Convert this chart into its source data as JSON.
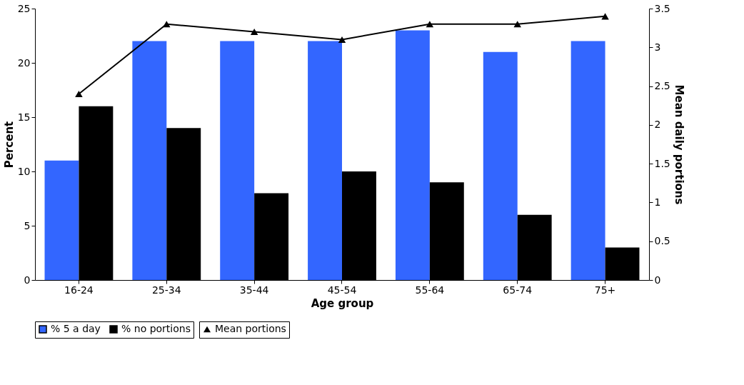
{
  "chart_data": {
    "type": "bar",
    "xlabel": "Age group",
    "ylabel": "Percent",
    "y2label": "Mean daily portions",
    "categories": [
      "16-24",
      "25-34",
      "35-44",
      "45-54",
      "55-64",
      "65-74",
      "75+"
    ],
    "series": [
      {
        "name": "% 5 a day",
        "color": "#3366ff",
        "values": [
          11,
          22,
          22,
          22,
          23,
          21,
          22
        ]
      },
      {
        "name": "% no portions",
        "color": "#000000",
        "values": [
          16,
          14,
          8,
          10,
          9,
          6,
          3
        ]
      },
      {
        "name": "Mean portions",
        "color": "#000000",
        "type": "line",
        "axis": "y2",
        "marker": "triangle",
        "values": [
          2.4,
          3.3,
          3.2,
          3.1,
          3.3,
          3.3,
          3.4
        ]
      }
    ],
    "ylim": [
      0,
      25
    ],
    "yticks": [
      0,
      5,
      10,
      15,
      20,
      25
    ],
    "y2lim": [
      0,
      3.5
    ],
    "y2ticks": [
      0,
      0.5,
      1,
      1.5,
      2,
      2.5,
      3,
      3.5
    ],
    "grid": false,
    "legend": "bottom"
  }
}
